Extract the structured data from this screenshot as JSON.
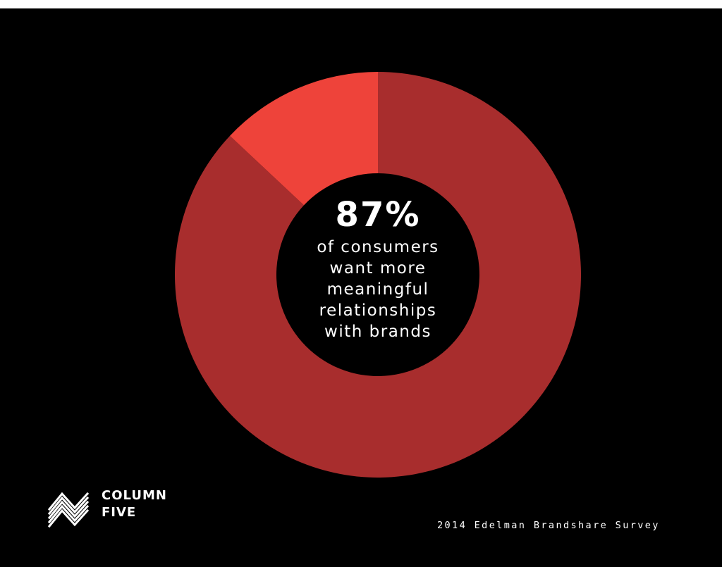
{
  "chart_data": {
    "type": "pie",
    "style": "donut",
    "slices": [
      {
        "label": "of consumers want more meaningful relationships with brands",
        "value": 87,
        "color": "#a82d2d"
      },
      {
        "label": "",
        "value": 13,
        "color": "#ee433a"
      }
    ],
    "center_value": "87%",
    "center_caption": [
      "of consumers",
      "want more",
      "meaningful",
      "relationships",
      "with brands"
    ]
  },
  "brand": {
    "line1": "COLUMN",
    "line2": "FIVE"
  },
  "source": "2014 Edelman Brandshare Survey",
  "colors": {
    "background": "#000000",
    "primary": "#a82d2d",
    "accent": "#ee433a",
    "text": "#ffffff"
  }
}
